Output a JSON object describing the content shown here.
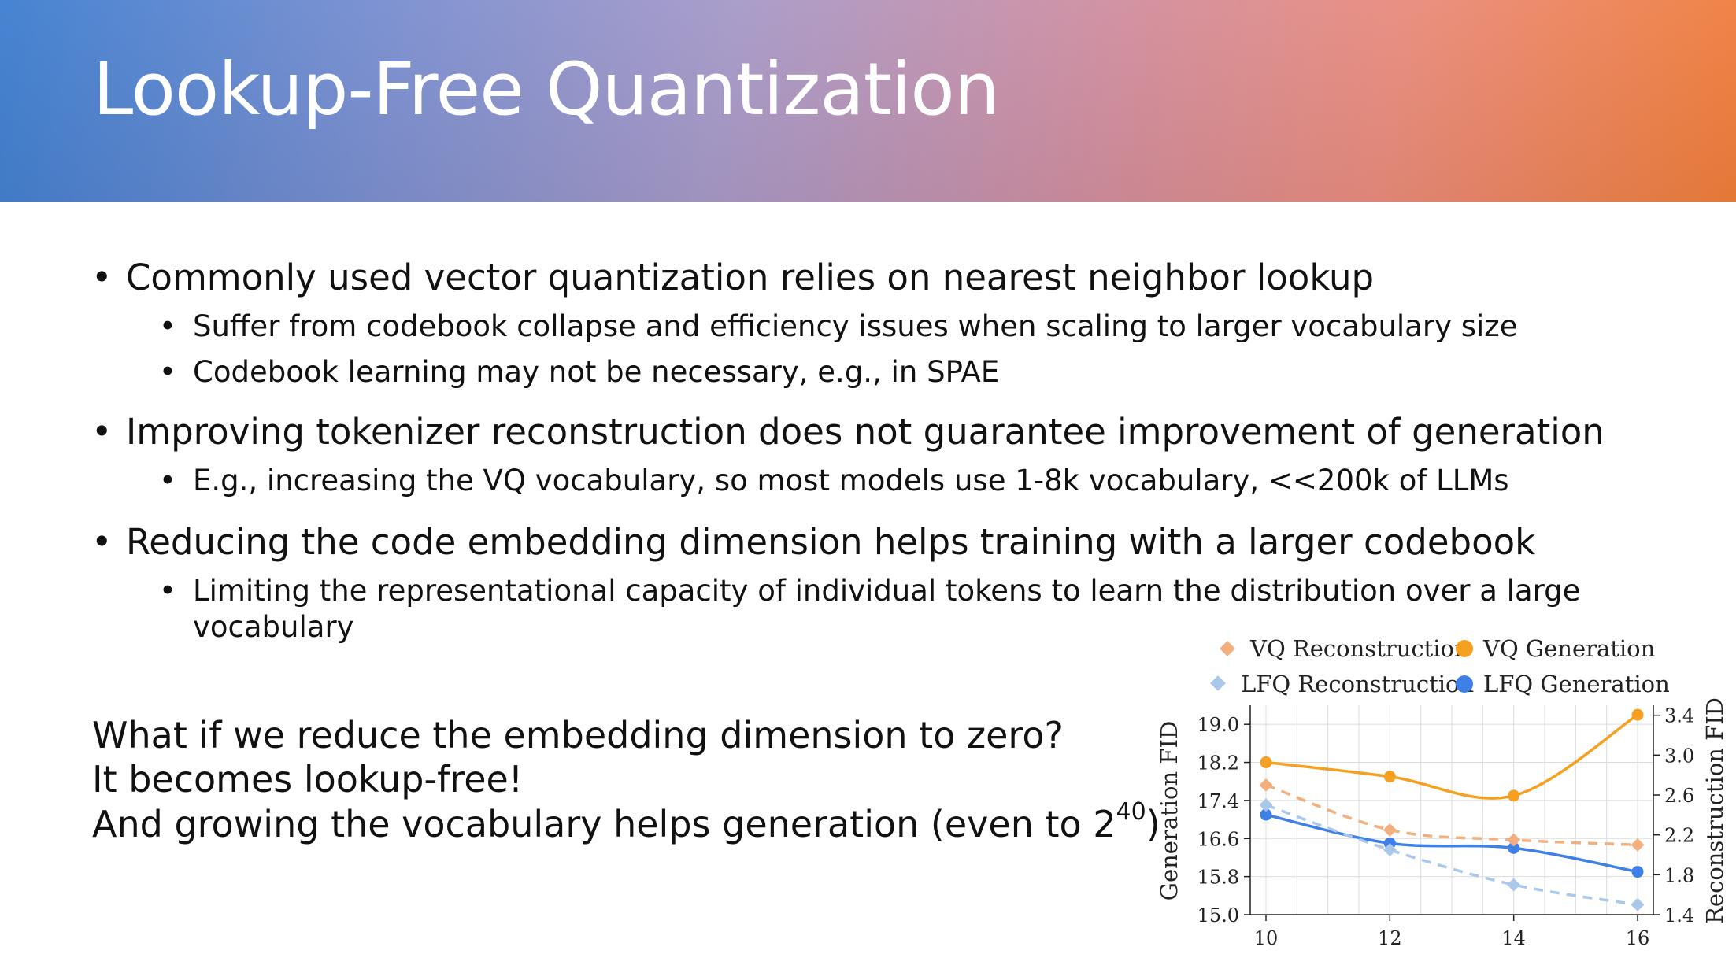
{
  "slide": {
    "title": "Lookup-Free Quantization",
    "bullets": [
      {
        "text": "Commonly used vector quantization relies on nearest neighbor lookup",
        "sub": [
          "Suffer from codebook collapse and efficiency issues when scaling to larger vocabulary size",
          "Codebook learning may not be necessary, e.g., in SPAE"
        ]
      },
      {
        "text": "Improving tokenizer reconstruction does not guarantee improvement of generation",
        "sub": [
          "E.g., increasing the VQ vocabulary, so most models use 1-8k vocabulary, <<200k of LLMs"
        ]
      },
      {
        "text": "Reducing the code embedding dimension helps training with a larger codebook",
        "sub": [
          "Limiting the representational capacity of individual tokens to learn the distribution over a large",
          "vocabulary"
        ]
      }
    ],
    "question": {
      "line1": "What if we reduce the embedding dimension to zero?",
      "line2": "It becomes lookup-free!",
      "line3": "And growing the vocabulary helps generation (even to 2",
      "line3_exp": "40",
      "line3_end": ")"
    }
  },
  "colors": {
    "vq_gen": "#f5a020",
    "vq_rec": "#f3b07e",
    "lfq_gen": "#3f7fe8",
    "lfq_rec": "#a9c8ec"
  },
  "chart_data": {
    "type": "line",
    "x": [
      10,
      12,
      14,
      16
    ],
    "xticks": [
      "10",
      "12",
      "14",
      "16"
    ],
    "ylabel": "Generation FID",
    "y2label": "Reconstruction FID",
    "ylim": [
      15.0,
      19.4
    ],
    "y2lim": [
      1.4,
      3.5
    ],
    "yticks": [
      "15.0",
      "15.8",
      "16.6",
      "17.4",
      "18.2",
      "19.0"
    ],
    "y2ticks": [
      "1.4",
      "1.8",
      "2.2",
      "2.6",
      "3.0",
      "3.4"
    ],
    "legend": [
      "VQ Reconstruction",
      "VQ Generation",
      "LFQ Reconstruction",
      "LFQ Generation"
    ],
    "series": [
      {
        "name": "VQ Generation",
        "axis": "left",
        "style": "solid",
        "marker": "circle",
        "values": [
          18.2,
          17.9,
          17.5,
          19.2
        ]
      },
      {
        "name": "LFQ Generation",
        "axis": "left",
        "style": "solid",
        "marker": "circle",
        "values": [
          17.1,
          16.5,
          16.4,
          15.9
        ]
      },
      {
        "name": "VQ Reconstruction",
        "axis": "right",
        "style": "dashed",
        "marker": "diamond",
        "values": [
          2.7,
          2.25,
          2.15,
          2.1
        ]
      },
      {
        "name": "LFQ Reconstruction",
        "axis": "right",
        "style": "dashed",
        "marker": "diamond",
        "values": [
          2.5,
          2.05,
          1.7,
          1.5
        ]
      }
    ]
  }
}
